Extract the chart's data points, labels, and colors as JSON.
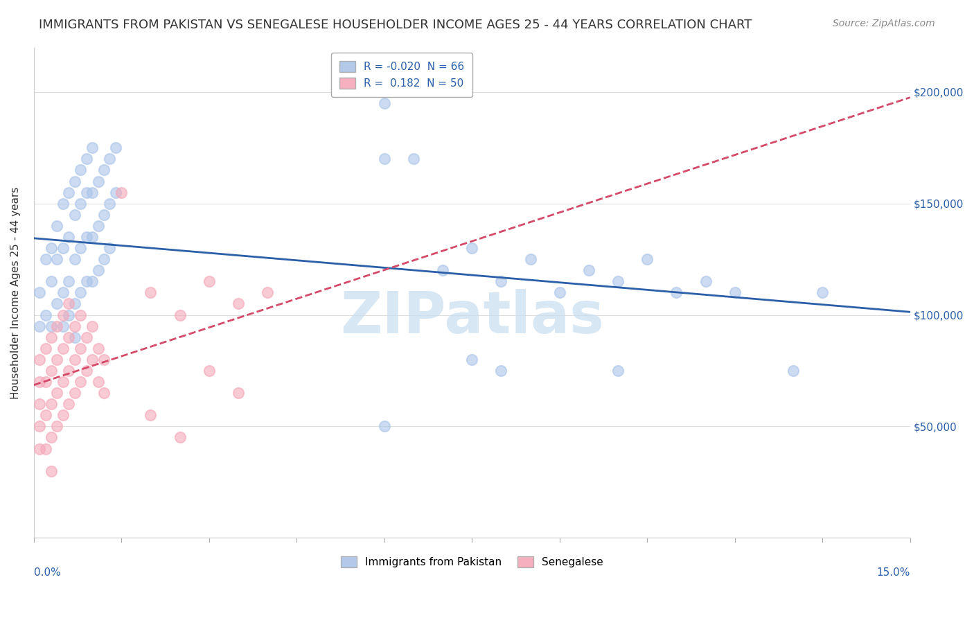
{
  "title": "IMMIGRANTS FROM PAKISTAN VS SENEGALESE HOUSEHOLDER INCOME AGES 25 - 44 YEARS CORRELATION CHART",
  "source": "Source: ZipAtlas.com",
  "ylabel": "Householder Income Ages 25 - 44 years",
  "xlim": [
    0.0,
    0.15
  ],
  "ylim": [
    0,
    220000
  ],
  "watermark": "ZIPatlas",
  "legend_r_labels": [
    "R = -0.020  N = 66",
    "R =  0.182  N = 50"
  ],
  "legend_labels": [
    "Immigrants from Pakistan",
    "Senegalese"
  ],
  "blue_scatter": [
    [
      0.001,
      110000
    ],
    [
      0.001,
      95000
    ],
    [
      0.002,
      125000
    ],
    [
      0.002,
      100000
    ],
    [
      0.003,
      130000
    ],
    [
      0.003,
      115000
    ],
    [
      0.003,
      95000
    ],
    [
      0.004,
      140000
    ],
    [
      0.004,
      125000
    ],
    [
      0.004,
      105000
    ],
    [
      0.005,
      150000
    ],
    [
      0.005,
      130000
    ],
    [
      0.005,
      110000
    ],
    [
      0.005,
      95000
    ],
    [
      0.006,
      155000
    ],
    [
      0.006,
      135000
    ],
    [
      0.006,
      115000
    ],
    [
      0.006,
      100000
    ],
    [
      0.007,
      160000
    ],
    [
      0.007,
      145000
    ],
    [
      0.007,
      125000
    ],
    [
      0.007,
      105000
    ],
    [
      0.007,
      90000
    ],
    [
      0.008,
      165000
    ],
    [
      0.008,
      150000
    ],
    [
      0.008,
      130000
    ],
    [
      0.008,
      110000
    ],
    [
      0.009,
      170000
    ],
    [
      0.009,
      155000
    ],
    [
      0.009,
      135000
    ],
    [
      0.009,
      115000
    ],
    [
      0.01,
      175000
    ],
    [
      0.01,
      155000
    ],
    [
      0.01,
      135000
    ],
    [
      0.01,
      115000
    ],
    [
      0.011,
      160000
    ],
    [
      0.011,
      140000
    ],
    [
      0.011,
      120000
    ],
    [
      0.012,
      165000
    ],
    [
      0.012,
      145000
    ],
    [
      0.012,
      125000
    ],
    [
      0.013,
      170000
    ],
    [
      0.013,
      150000
    ],
    [
      0.013,
      130000
    ],
    [
      0.014,
      175000
    ],
    [
      0.014,
      155000
    ],
    [
      0.06,
      195000
    ],
    [
      0.065,
      170000
    ],
    [
      0.07,
      120000
    ],
    [
      0.075,
      130000
    ],
    [
      0.08,
      115000
    ],
    [
      0.085,
      125000
    ],
    [
      0.09,
      110000
    ],
    [
      0.095,
      120000
    ],
    [
      0.1,
      115000
    ],
    [
      0.105,
      125000
    ],
    [
      0.11,
      110000
    ],
    [
      0.115,
      115000
    ],
    [
      0.12,
      110000
    ],
    [
      0.06,
      50000
    ],
    [
      0.075,
      80000
    ],
    [
      0.08,
      75000
    ],
    [
      0.06,
      170000
    ],
    [
      0.1,
      75000
    ],
    [
      0.13,
      75000
    ],
    [
      0.135,
      110000
    ]
  ],
  "pink_scatter": [
    [
      0.001,
      80000
    ],
    [
      0.001,
      70000
    ],
    [
      0.001,
      60000
    ],
    [
      0.001,
      50000
    ],
    [
      0.001,
      40000
    ],
    [
      0.002,
      85000
    ],
    [
      0.002,
      70000
    ],
    [
      0.002,
      55000
    ],
    [
      0.002,
      40000
    ],
    [
      0.003,
      90000
    ],
    [
      0.003,
      75000
    ],
    [
      0.003,
      60000
    ],
    [
      0.003,
      45000
    ],
    [
      0.003,
      30000
    ],
    [
      0.004,
      95000
    ],
    [
      0.004,
      80000
    ],
    [
      0.004,
      65000
    ],
    [
      0.004,
      50000
    ],
    [
      0.005,
      100000
    ],
    [
      0.005,
      85000
    ],
    [
      0.005,
      70000
    ],
    [
      0.005,
      55000
    ],
    [
      0.006,
      105000
    ],
    [
      0.006,
      90000
    ],
    [
      0.006,
      75000
    ],
    [
      0.006,
      60000
    ],
    [
      0.007,
      95000
    ],
    [
      0.007,
      80000
    ],
    [
      0.007,
      65000
    ],
    [
      0.008,
      100000
    ],
    [
      0.008,
      85000
    ],
    [
      0.008,
      70000
    ],
    [
      0.009,
      90000
    ],
    [
      0.009,
      75000
    ],
    [
      0.01,
      95000
    ],
    [
      0.01,
      80000
    ],
    [
      0.011,
      85000
    ],
    [
      0.011,
      70000
    ],
    [
      0.012,
      80000
    ],
    [
      0.012,
      65000
    ],
    [
      0.015,
      155000
    ],
    [
      0.02,
      110000
    ],
    [
      0.025,
      100000
    ],
    [
      0.03,
      115000
    ],
    [
      0.035,
      105000
    ],
    [
      0.04,
      110000
    ],
    [
      0.02,
      55000
    ],
    [
      0.025,
      45000
    ],
    [
      0.03,
      75000
    ],
    [
      0.035,
      65000
    ]
  ],
  "blue_line_color": "#2b5fa8",
  "pink_line_color": "#d44a6a",
  "blue_scatter_color": "#aac4e8",
  "pink_scatter_color": "#f4a7b8",
  "yticks": [
    0,
    50000,
    100000,
    150000,
    200000
  ],
  "ytick_labels": [
    "",
    "$50,000",
    "$100,000",
    "$150,000",
    "$200,000"
  ],
  "background_color": "#ffffff",
  "grid_color": "#dddddd",
  "title_fontsize": 13,
  "source_fontsize": 10,
  "watermark_color": "#c8ddf0",
  "watermark_fontsize": 60
}
